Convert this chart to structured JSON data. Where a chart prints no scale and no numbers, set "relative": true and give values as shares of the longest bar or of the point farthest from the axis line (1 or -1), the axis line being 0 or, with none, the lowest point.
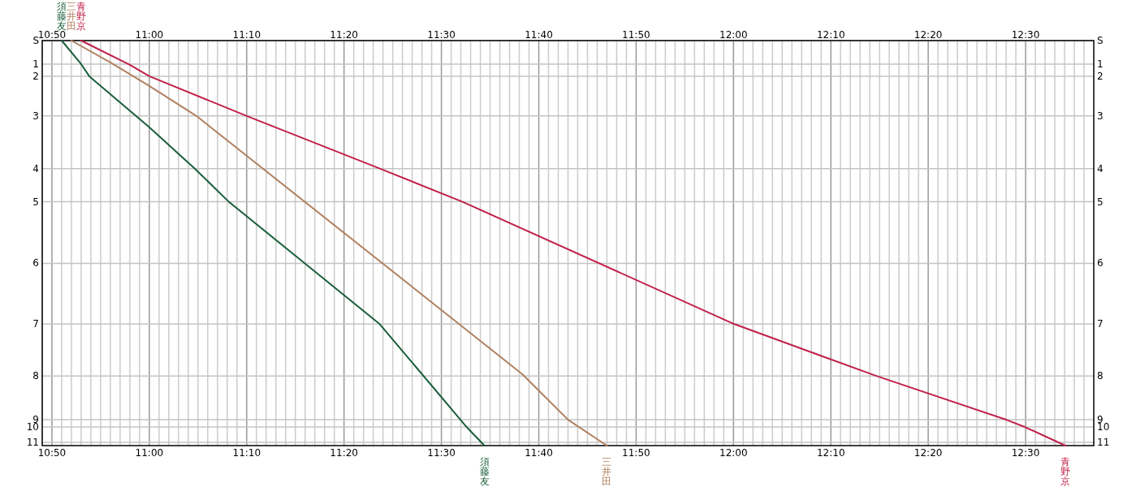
{
  "chart_data": {
    "type": "line",
    "grid": "x",
    "relative": true,
    "xlim": [
      10.8167,
      12.6167
    ],
    "x2lim": [
      10.8167,
      12.6167
    ],
    "xticks": [
      {
        "value": 10.8167,
        "label": null
      },
      {
        "value": 10.8333,
        "label": "10:50"
      },
      {
        "value": 10.85,
        "label": null
      },
      {
        "value": 10.8667,
        "label": null
      },
      {
        "value": 10.8833,
        "label": null
      },
      {
        "value": 10.9,
        "label": null
      },
      {
        "value": 10.9167,
        "label": null
      },
      {
        "value": 10.9333,
        "label": null
      },
      {
        "value": 10.95,
        "label": null
      },
      {
        "value": 10.9667,
        "label": null
      },
      {
        "value": 10.9833,
        "label": null
      },
      {
        "value": 11.0,
        "label": "11:00"
      },
      {
        "value": 11.0167,
        "label": null
      },
      {
        "value": 11.0333,
        "label": null
      },
      {
        "value": 11.05,
        "label": null
      },
      {
        "value": 11.0667,
        "label": null
      },
      {
        "value": 11.0833,
        "label": null
      },
      {
        "value": 11.1,
        "label": null
      },
      {
        "value": 11.1167,
        "label": null
      },
      {
        "value": 11.1333,
        "label": null
      },
      {
        "value": 11.15,
        "label": null
      },
      {
        "value": 11.1667,
        "label": "11:10"
      },
      {
        "value": 11.1833,
        "label": null
      },
      {
        "value": 11.2,
        "label": null
      },
      {
        "value": 11.2167,
        "label": null
      },
      {
        "value": 11.2333,
        "label": null
      },
      {
        "value": 11.25,
        "label": null
      },
      {
        "value": 11.2667,
        "label": null
      },
      {
        "value": 11.2833,
        "label": null
      },
      {
        "value": 11.3,
        "label": null
      },
      {
        "value": 11.3167,
        "label": null
      },
      {
        "value": 11.3333,
        "label": "11:20"
      },
      {
        "value": 11.35,
        "label": null
      },
      {
        "value": 11.3667,
        "label": null
      },
      {
        "value": 11.3833,
        "label": null
      },
      {
        "value": 11.4,
        "label": null
      },
      {
        "value": 11.4167,
        "label": null
      },
      {
        "value": 11.4333,
        "label": null
      },
      {
        "value": 11.45,
        "label": null
      },
      {
        "value": 11.4667,
        "label": null
      },
      {
        "value": 11.4833,
        "label": null
      },
      {
        "value": 11.5,
        "label": "11:30"
      },
      {
        "value": 11.5167,
        "label": null
      },
      {
        "value": 11.5333,
        "label": null
      },
      {
        "value": 11.55,
        "label": null
      },
      {
        "value": 11.5667,
        "label": null
      },
      {
        "value": 11.5833,
        "label": null
      },
      {
        "value": 11.6,
        "label": null
      },
      {
        "value": 11.6167,
        "label": null
      },
      {
        "value": 11.6333,
        "label": null
      },
      {
        "value": 11.65,
        "label": null
      },
      {
        "value": 11.6667,
        "label": "11:40"
      },
      {
        "value": 11.6833,
        "label": null
      },
      {
        "value": 11.7,
        "label": null
      },
      {
        "value": 11.7167,
        "label": null
      },
      {
        "value": 11.7333,
        "label": null
      },
      {
        "value": 11.75,
        "label": null
      },
      {
        "value": 11.7667,
        "label": null
      },
      {
        "value": 11.7833,
        "label": null
      },
      {
        "value": 11.8,
        "label": null
      },
      {
        "value": 11.8167,
        "label": null
      },
      {
        "value": 11.8333,
        "label": "11:50"
      },
      {
        "value": 11.85,
        "label": null
      },
      {
        "value": 11.8667,
        "label": null
      },
      {
        "value": 11.8833,
        "label": null
      },
      {
        "value": 11.9,
        "label": null
      },
      {
        "value": 11.9167,
        "label": null
      },
      {
        "value": 11.9333,
        "label": null
      },
      {
        "value": 11.95,
        "label": null
      },
      {
        "value": 11.9667,
        "label": null
      },
      {
        "value": 11.9833,
        "label": null
      },
      {
        "value": 12.0,
        "label": "12:00"
      },
      {
        "value": 12.0167,
        "label": null
      },
      {
        "value": 12.0333,
        "label": null
      },
      {
        "value": 12.05,
        "label": null
      },
      {
        "value": 12.0667,
        "label": null
      },
      {
        "value": 12.0833,
        "label": null
      },
      {
        "value": 12.1,
        "label": null
      },
      {
        "value": 12.1167,
        "label": null
      },
      {
        "value": 12.1333,
        "label": null
      },
      {
        "value": 12.15,
        "label": null
      },
      {
        "value": 12.1667,
        "label": "12:10"
      },
      {
        "value": 12.1833,
        "label": null
      },
      {
        "value": 12.2,
        "label": null
      },
      {
        "value": 12.2167,
        "label": null
      },
      {
        "value": 12.2333,
        "label": null
      },
      {
        "value": 12.25,
        "label": null
      },
      {
        "value": 12.2667,
        "label": null
      },
      {
        "value": 12.2833,
        "label": null
      },
      {
        "value": 12.3,
        "label": null
      },
      {
        "value": 12.3167,
        "label": null
      },
      {
        "value": 12.3333,
        "label": "12:20"
      },
      {
        "value": 12.35,
        "label": null
      },
      {
        "value": 12.3667,
        "label": null
      },
      {
        "value": 12.3833,
        "label": null
      },
      {
        "value": 12.4,
        "label": null
      },
      {
        "value": 12.4167,
        "label": null
      },
      {
        "value": 12.4333,
        "label": null
      },
      {
        "value": 12.45,
        "label": null
      },
      {
        "value": 12.4667,
        "label": null
      },
      {
        "value": 12.4833,
        "label": null
      },
      {
        "value": 12.5,
        "label": "12:30"
      },
      {
        "value": 12.5167,
        "label": null
      },
      {
        "value": 12.5333,
        "label": null
      },
      {
        "value": 12.55,
        "label": null
      },
      {
        "value": 12.5667,
        "label": null
      },
      {
        "value": 12.5833,
        "label": null
      },
      {
        "value": 12.6,
        "label": null
      }
    ],
    "x2ticks": [
      {
        "value": 10.8333,
        "label": "10:50"
      },
      {
        "value": 11.0,
        "label": "11:00"
      },
      {
        "value": 11.1667,
        "label": "11:10"
      },
      {
        "value": 11.3333,
        "label": "11:20"
      },
      {
        "value": 11.5,
        "label": "11:30"
      },
      {
        "value": 11.6667,
        "label": "11:40"
      },
      {
        "value": 11.8333,
        "label": "11:50"
      },
      {
        "value": 12.0,
        "label": "12:00"
      },
      {
        "value": 12.1667,
        "label": "12:10"
      },
      {
        "value": 12.3333,
        "label": "12:20"
      },
      {
        "value": 12.5,
        "label": "12:30"
      }
    ],
    "ref_lines": [
      {
        "axis": "y",
        "value": 1,
        "color": "#c4c4c4"
      },
      {
        "axis": "y",
        "value": 0.942,
        "color": "#c4c4c4"
      },
      {
        "axis": "y",
        "value": 0.912,
        "color": "#c4c4c4"
      },
      {
        "axis": "y",
        "value": 0.814,
        "color": "#c4c4c4"
      },
      {
        "axis": "y",
        "value": 0.684,
        "color": "#c4c4c4"
      },
      {
        "axis": "y",
        "value": 0.602,
        "color": "#c4c4c4"
      },
      {
        "axis": "y",
        "value": 0.45,
        "color": "#c4c4c4"
      },
      {
        "axis": "y",
        "value": 0.3,
        "color": "#c4c4c4"
      },
      {
        "axis": "y",
        "value": 0.172,
        "color": "#c4c4c4"
      },
      {
        "axis": "y",
        "value": 0.064,
        "color": "#c4c4c4"
      },
      {
        "axis": "y",
        "value": 0.046,
        "color": "#c4c4c4"
      },
      {
        "axis": "y",
        "value": 0.008,
        "color": "#c4c4c4"
      }
    ],
    "annotations": [
      "S",
      "1",
      "2",
      "3",
      "4",
      "5",
      "6",
      "7",
      "8",
      "9",
      "10",
      "11"
    ],
    "series": [
      {
        "name": "須藤友",
        "color": "#1b5e3b",
        "x": [
          10.85,
          10.8833,
          10.8972,
          11.0,
          11.0778,
          11.1361,
          11.3944,
          11.5431,
          11.5736
        ],
        "values": [
          1,
          0.942,
          0.912,
          0.786,
          0.684,
          0.602,
          0.3,
          0.046,
          0
        ]
      },
      {
        "name": "三井田",
        "color": "#b08060",
        "x": [
          10.8667,
          10.9333,
          11.0,
          11.0806,
          11.6389,
          11.7167,
          11.7833
        ],
        "values": [
          1,
          0.946,
          0.888,
          0.814,
          0.176,
          0.064,
          0
        ]
      },
      {
        "name": "青野京",
        "color": "#c0204a",
        "x": [
          10.8833,
          10.9667,
          11.0,
          11.1667,
          11.3944,
          11.5361,
          12.0014,
          12.2444,
          12.4667,
          12.4986,
          12.5681
        ],
        "values": [
          1,
          0.94,
          0.912,
          0.814,
          0.684,
          0.602,
          0.3,
          0.172,
          0.064,
          0.046,
          0
        ]
      }
    ]
  }
}
